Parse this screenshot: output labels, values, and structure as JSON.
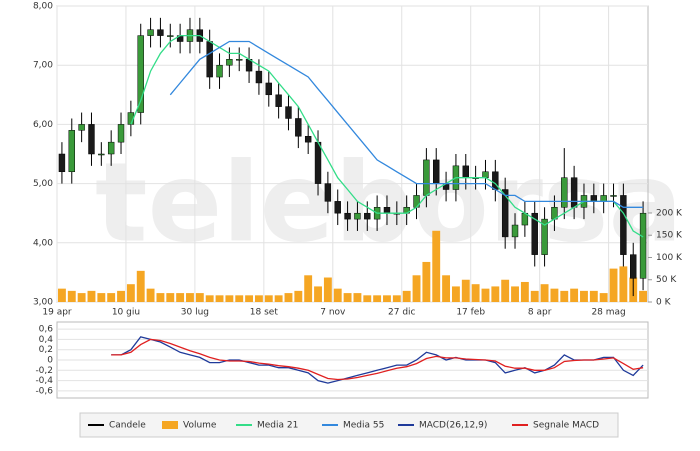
{
  "chart_data": [
    {
      "type": "candlestick",
      "watermark": "teleborsa",
      "categories": [
        "19 apr",
        null,
        null,
        null,
        null,
        null,
        null,
        "10 giu",
        null,
        null,
        null,
        null,
        null,
        null,
        "30 lug",
        null,
        null,
        null,
        null,
        null,
        null,
        "18 set",
        null,
        null,
        null,
        null,
        null,
        null,
        "7 nov",
        null,
        null,
        null,
        null,
        null,
        null,
        "27 dic",
        null,
        null,
        null,
        null,
        null,
        null,
        "17 feb",
        null,
        null,
        null,
        null,
        null,
        null,
        "8 apr",
        null,
        null,
        null,
        null,
        null,
        null,
        "28 mag",
        null,
        null,
        null
      ],
      "ylim": [
        3,
        8
      ],
      "yticks": [
        {
          "value": 3,
          "label": "3,00"
        },
        {
          "value": 4,
          "label": "4,00"
        },
        {
          "value": 5,
          "label": "5,00"
        },
        {
          "value": 6,
          "label": "6,00"
        },
        {
          "value": 7,
          "label": "7,00"
        },
        {
          "value": 8,
          "label": "8,00"
        }
      ],
      "y2lim": [
        0,
        665
      ],
      "y2ticks": [
        {
          "value": 0,
          "label": "0 K"
        },
        {
          "value": 50,
          "label": "50 K"
        },
        {
          "value": 100,
          "label": "100 K"
        },
        {
          "value": 150,
          "label": "150 K"
        },
        {
          "value": 200,
          "label": "200 K"
        }
      ],
      "grid": true,
      "candles": {
        "name": "Candele",
        "color": "#000000",
        "up_color": "#3a9a3a",
        "down_color": "#1a1a1a",
        "open": [
          5.5,
          5.2,
          5.9,
          6.0,
          5.5,
          5.5,
          5.7,
          6.0,
          6.2,
          7.5,
          7.6,
          7.5,
          7.5,
          7.4,
          7.6,
          7.4,
          6.8,
          7.0,
          7.1,
          7.1,
          6.9,
          6.7,
          6.5,
          6.3,
          6.1,
          5.8,
          5.7,
          5.0,
          4.7,
          4.5,
          4.4,
          4.5,
          4.4,
          4.6,
          4.5,
          4.5,
          4.6,
          4.8,
          5.4,
          5.0,
          4.9,
          5.3,
          5.1,
          5.1,
          5.2,
          4.9,
          4.1,
          4.3,
          4.5,
          3.8,
          4.4,
          4.6,
          5.1,
          4.6,
          4.8,
          4.7,
          4.8,
          4.8,
          3.8,
          3.4
        ],
        "high": [
          5.7,
          6.1,
          6.2,
          6.2,
          5.7,
          5.9,
          6.2,
          6.4,
          7.7,
          7.8,
          7.8,
          7.7,
          7.7,
          7.8,
          7.8,
          7.6,
          7.2,
          7.3,
          7.3,
          7.3,
          7.1,
          6.9,
          6.7,
          6.5,
          6.3,
          6.0,
          5.9,
          5.2,
          4.9,
          4.7,
          4.7,
          4.7,
          4.8,
          4.8,
          4.7,
          4.8,
          5.0,
          5.6,
          5.6,
          5.2,
          5.5,
          5.5,
          5.3,
          5.4,
          5.4,
          5.1,
          4.5,
          4.7,
          4.7,
          4.6,
          4.8,
          5.6,
          5.3,
          5.0,
          5.0,
          5.0,
          5.0,
          5.0,
          4.0,
          4.7
        ],
        "low": [
          5.0,
          5.0,
          5.7,
          5.3,
          5.3,
          5.3,
          5.5,
          5.8,
          6.0,
          7.3,
          7.3,
          7.3,
          7.2,
          7.2,
          7.2,
          6.6,
          6.6,
          6.8,
          6.9,
          6.7,
          6.5,
          6.3,
          6.1,
          5.9,
          5.6,
          5.5,
          4.8,
          4.5,
          4.3,
          4.2,
          4.2,
          4.2,
          4.2,
          4.3,
          4.3,
          4.3,
          4.4,
          4.6,
          4.8,
          4.7,
          4.7,
          4.9,
          4.9,
          4.9,
          4.7,
          3.9,
          3.9,
          4.1,
          3.6,
          3.6,
          4.2,
          4.4,
          4.4,
          4.4,
          4.5,
          4.5,
          4.6,
          3.6,
          3.1,
          3.2
        ],
        "close": [
          5.2,
          5.9,
          6.0,
          5.5,
          5.5,
          5.7,
          6.0,
          6.2,
          7.5,
          7.6,
          7.5,
          7.5,
          7.4,
          7.6,
          7.4,
          6.8,
          7.0,
          7.1,
          7.1,
          6.9,
          6.7,
          6.5,
          6.3,
          6.1,
          5.8,
          5.7,
          5.0,
          4.7,
          4.5,
          4.4,
          4.5,
          4.4,
          4.6,
          4.5,
          4.5,
          4.6,
          4.8,
          5.4,
          5.0,
          4.9,
          5.3,
          5.1,
          5.1,
          5.2,
          4.9,
          4.1,
          4.3,
          4.5,
          3.8,
          4.4,
          4.6,
          5.1,
          4.6,
          4.8,
          4.7,
          4.8,
          4.8,
          3.8,
          3.4,
          4.5
        ]
      },
      "series": [
        {
          "name": "Volume",
          "color": "#f5a623",
          "axis": "y2",
          "kind": "bar",
          "values": [
            30,
            25,
            20,
            25,
            20,
            20,
            25,
            40,
            70,
            30,
            20,
            20,
            20,
            20,
            20,
            15,
            15,
            15,
            15,
            15,
            15,
            15,
            15,
            20,
            25,
            60,
            35,
            55,
            30,
            20,
            20,
            15,
            15,
            15,
            15,
            25,
            60,
            90,
            160,
            60,
            35,
            50,
            40,
            30,
            35,
            50,
            35,
            45,
            25,
            40,
            30,
            25,
            30,
            25,
            25,
            20,
            75,
            80,
            55,
            25
          ]
        },
        {
          "name": "Media 21",
          "color": "#33dd88",
          "kind": "line",
          "values": [
            null,
            null,
            null,
            null,
            null,
            null,
            null,
            6.0,
            6.4,
            6.9,
            7.2,
            7.4,
            7.5,
            7.5,
            7.5,
            7.4,
            7.3,
            7.2,
            7.2,
            7.1,
            7.0,
            6.9,
            6.7,
            6.5,
            6.3,
            6.0,
            5.7,
            5.4,
            5.1,
            4.9,
            4.7,
            4.6,
            4.5,
            4.5,
            4.5,
            4.5,
            4.6,
            4.8,
            4.9,
            5.0,
            5.1,
            5.1,
            5.1,
            5.1,
            5.0,
            4.8,
            4.6,
            4.5,
            4.4,
            4.3,
            4.4,
            4.5,
            4.6,
            4.7,
            4.7,
            4.7,
            4.7,
            4.5,
            4.2,
            4.1
          ]
        },
        {
          "name": "Media 55",
          "color": "#3388dd",
          "kind": "line",
          "values": [
            null,
            null,
            null,
            null,
            null,
            null,
            null,
            null,
            null,
            null,
            null,
            6.5,
            6.7,
            6.9,
            7.1,
            7.2,
            7.3,
            7.4,
            7.4,
            7.4,
            7.3,
            7.2,
            7.1,
            7.0,
            6.9,
            6.8,
            6.6,
            6.4,
            6.2,
            6.0,
            5.8,
            5.6,
            5.4,
            5.3,
            5.2,
            5.1,
            5.0,
            5.0,
            5.0,
            5.0,
            5.0,
            5.0,
            5.0,
            5.0,
            4.9,
            4.8,
            4.8,
            4.7,
            4.7,
            4.7,
            4.7,
            4.7,
            4.7,
            4.7,
            4.7,
            4.7,
            4.7,
            4.6,
            4.6,
            4.6
          ]
        }
      ]
    },
    {
      "type": "line",
      "ylim": [
        -0.7,
        0.7
      ],
      "yticks": [
        {
          "value": 0.6,
          "label": "0,6"
        },
        {
          "value": 0.4,
          "label": "0,4"
        },
        {
          "value": 0.2,
          "label": "0,2"
        },
        0,
        {
          "value": -0.2,
          "label": "-0,2"
        },
        {
          "value": -0.4,
          "label": "-0,4"
        },
        {
          "value": -0.6,
          "label": "-0,6"
        }
      ],
      "grid": true,
      "series": [
        {
          "name": "MACD(26,12,9)",
          "color": "#1f3a9a",
          "values": [
            null,
            null,
            null,
            null,
            null,
            0.1,
            0.1,
            0.2,
            0.45,
            0.4,
            0.35,
            0.25,
            0.15,
            0.1,
            0.05,
            -0.05,
            -0.05,
            0,
            0,
            -0.05,
            -0.1,
            -0.1,
            -0.15,
            -0.15,
            -0.2,
            -0.25,
            -0.4,
            -0.45,
            -0.4,
            -0.35,
            -0.3,
            -0.25,
            -0.2,
            -0.15,
            -0.1,
            -0.1,
            0,
            0.15,
            0.1,
            0,
            0.05,
            0,
            0,
            0,
            -0.05,
            -0.25,
            -0.2,
            -0.15,
            -0.25,
            -0.2,
            -0.1,
            0.1,
            0,
            0,
            0,
            0.05,
            0.05,
            -0.2,
            -0.3,
            -0.1
          ]
        },
        {
          "name": "Segnale MACD",
          "color": "#e02020",
          "values": [
            null,
            null,
            null,
            null,
            null,
            0.1,
            0.1,
            0.15,
            0.3,
            0.4,
            0.38,
            0.32,
            0.25,
            0.18,
            0.12,
            0.05,
            0,
            -0.02,
            -0.02,
            -0.03,
            -0.06,
            -0.08,
            -0.11,
            -0.13,
            -0.16,
            -0.2,
            -0.28,
            -0.36,
            -0.38,
            -0.37,
            -0.34,
            -0.3,
            -0.26,
            -0.21,
            -0.16,
            -0.13,
            -0.07,
            0.03,
            0.07,
            0.04,
            0.04,
            0.02,
            0.01,
            0,
            -0.02,
            -0.12,
            -0.16,
            -0.16,
            -0.2,
            -0.2,
            -0.15,
            -0.03,
            -0.01,
            0,
            0,
            0.02,
            0.04,
            -0.07,
            -0.18,
            -0.15
          ]
        }
      ]
    }
  ]
}
